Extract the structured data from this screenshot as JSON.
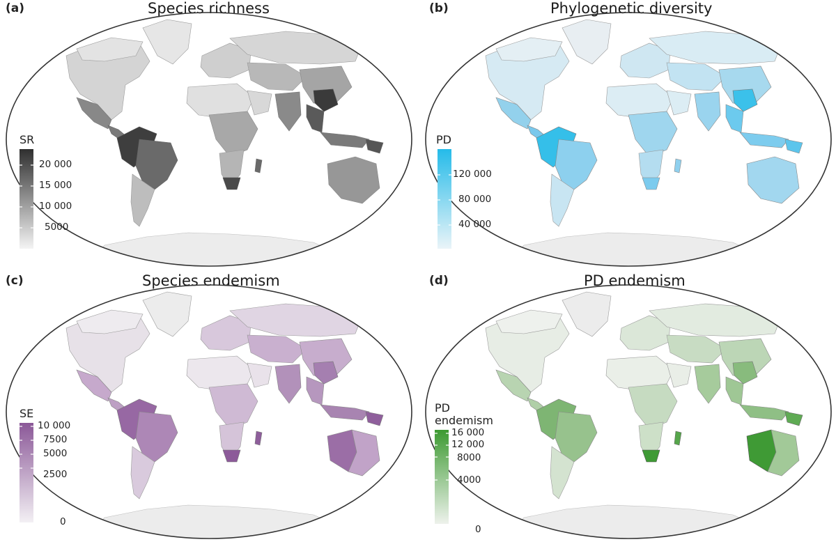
{
  "panels": [
    {
      "letter": "(a)",
      "title": "Species richness",
      "legend_title": "SR",
      "ticks": [
        "20 000",
        "15 000",
        "10 000",
        "5000"
      ],
      "color_low": "#f2f2f2",
      "color_high": "#303030"
    },
    {
      "letter": "(b)",
      "title": "Phylogenetic diversity",
      "legend_title": "PD",
      "ticks": [
        "120 000",
        "80 000",
        "40 000"
      ],
      "color_low": "#e8f3f8",
      "color_high": "#2bbce8"
    },
    {
      "letter": "(c)",
      "title": "Species endemism",
      "legend_title": "SE",
      "ticks": [
        "10 000",
        "7500",
        "5000",
        "2500",
        "0"
      ],
      "color_low": "#f1edf2",
      "color_high": "#8c5a99"
    },
    {
      "letter": "(d)",
      "title": "PD endemism",
      "legend_title_line1": "PD",
      "legend_title_line2": "endemism",
      "ticks": [
        "16 000",
        "12 000",
        "8000",
        "4000",
        "0"
      ],
      "color_low": "#eef2ec",
      "color_high": "#3f9a35"
    }
  ],
  "colors": {
    "land_base": "#eeeeee",
    "outline": "#333333",
    "border": "#9a9a9a"
  }
}
